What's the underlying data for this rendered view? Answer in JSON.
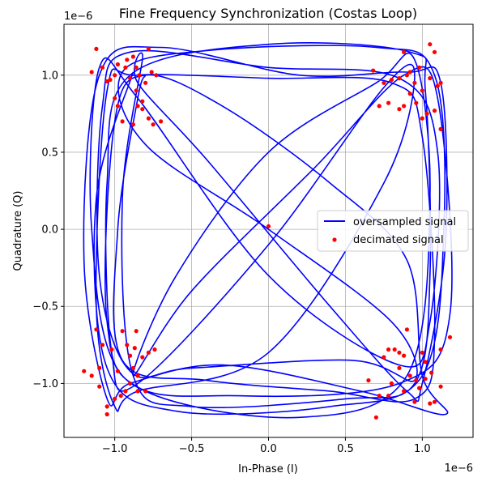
{
  "chart_data": {
    "type": "scatter",
    "title": "Fine Frequency Synchronization (Costas Loop)",
    "xlabel": "In-Phase (I)",
    "ylabel": "Quadrature (Q)",
    "x_offset_label": "1e−6",
    "y_offset_label": "1e−6",
    "xlim": [
      -1.33,
      1.33
    ],
    "ylim": [
      -1.35,
      1.33
    ],
    "xticks": [
      -1.0,
      -0.5,
      0.0,
      0.5,
      1.0
    ],
    "yticks": [
      -1.0,
      -0.5,
      0.0,
      0.5,
      1.0
    ],
    "xtick_labels": [
      "−1.0",
      "−0.5",
      "0.0",
      "0.5",
      "1.0"
    ],
    "ytick_labels": [
      "−1.0",
      "−0.5",
      "0.0",
      "0.5",
      "1.0"
    ],
    "grid": true,
    "legend_position": "right",
    "series": [
      {
        "name": "oversampled signal",
        "kind": "line",
        "color": "#0000ff",
        "points": [
          [
            -0.88,
            1.02
          ],
          [
            -1.12,
            0.2
          ],
          [
            -1.05,
            -0.9
          ],
          [
            -0.6,
            -1.18
          ],
          [
            0.4,
            -1.15
          ],
          [
            1.0,
            -0.95
          ],
          [
            1.14,
            0.0
          ],
          [
            1.08,
            1.0
          ],
          [
            0.7,
            1.18
          ],
          [
            -0.4,
            1.16
          ],
          [
            -0.95,
            1.02
          ],
          [
            -0.8,
            0.55
          ],
          [
            0.0,
            0.0
          ],
          [
            0.8,
            -0.6
          ],
          [
            0.95,
            -0.98
          ],
          [
            0.55,
            -0.85
          ],
          [
            -0.5,
            -0.9
          ],
          [
            -0.9,
            -0.92
          ],
          [
            -1.1,
            -0.3
          ],
          [
            -1.08,
            0.8
          ],
          [
            -0.9,
            1.15
          ],
          [
            0.0,
            1.05
          ],
          [
            0.85,
            0.98
          ],
          [
            1.1,
            0.5
          ],
          [
            1.05,
            -0.6
          ],
          [
            0.85,
            -0.88
          ],
          [
            0.0,
            -0.3
          ],
          [
            -0.85,
            0.85
          ],
          [
            -1.1,
            1.05
          ],
          [
            -1.15,
            0.0
          ],
          [
            -0.95,
            -0.95
          ],
          [
            -0.2,
            -1.08
          ],
          [
            0.85,
            -1.0
          ],
          [
            1.18,
            -0.55
          ],
          [
            1.1,
            0.85
          ],
          [
            0.88,
            1.0
          ],
          [
            0.3,
            0.4
          ],
          [
            -0.5,
            -0.4
          ],
          [
            -0.88,
            -0.95
          ],
          [
            -0.6,
            -0.3
          ],
          [
            0.0,
            0.5
          ],
          [
            0.7,
            0.95
          ],
          [
            0.95,
            1.1
          ],
          [
            1.05,
            0.2
          ],
          [
            0.9,
            -0.95
          ],
          [
            0.2,
            -1.22
          ],
          [
            -0.8,
            -1.05
          ],
          [
            -1.05,
            -0.6
          ],
          [
            -1.0,
            0.7
          ],
          [
            -0.8,
            1.0
          ],
          [
            -0.3,
            0.8
          ],
          [
            0.4,
            0.3
          ],
          [
            0.9,
            -0.2
          ],
          [
            1.0,
            -0.95
          ],
          [
            1.15,
            -1.2
          ],
          [
            0.6,
            -1.05
          ],
          [
            -0.3,
            -0.88
          ],
          [
            -0.9,
            -1.0
          ],
          [
            -1.05,
            -1.1
          ],
          [
            -1.2,
            -0.2
          ],
          [
            -1.1,
            1.0
          ],
          [
            -0.7,
            1.18
          ],
          [
            0.2,
            1.0
          ],
          [
            0.9,
            1.02
          ],
          [
            1.12,
            0.95
          ],
          [
            1.15,
            -0.1
          ],
          [
            1.0,
            -1.0
          ],
          [
            0.9,
            -1.05
          ],
          [
            0.4,
            -0.5
          ],
          [
            -0.4,
            0.45
          ],
          [
            -0.85,
            0.95
          ],
          [
            -0.82,
            1.1
          ],
          [
            -0.95,
            0.2
          ],
          [
            -0.88,
            -0.95
          ],
          [
            -0.5,
            -1.15
          ],
          [
            0.5,
            -1.1
          ],
          [
            0.95,
            -1.0
          ],
          [
            1.05,
            -0.3
          ],
          [
            1.02,
            0.9
          ],
          [
            0.92,
            1.15
          ],
          [
            0.0,
            1.2
          ],
          [
            -0.9,
            1.0
          ],
          [
            -1.05,
            0.3
          ],
          [
            -1.02,
            -0.8
          ],
          [
            -0.85,
            -1.0
          ],
          [
            0.0,
            -0.1
          ],
          [
            0.75,
            0.92
          ],
          [
            0.95,
            1.0
          ],
          [
            0.75,
            0.3
          ],
          [
            0.0,
            -0.8
          ],
          [
            -0.85,
            -1.05
          ],
          [
            -1.0,
            -1.15
          ],
          [
            -1.12,
            -0.5
          ],
          [
            -1.05,
            0.9
          ],
          [
            -0.85,
            1.0
          ],
          [
            0.0,
            0.98
          ],
          [
            0.8,
            0.95
          ],
          [
            1.0,
            0.6
          ],
          [
            1.08,
            -0.7
          ],
          [
            0.95,
            -1.1
          ],
          [
            0.4,
            -1.05
          ],
          [
            -0.4,
            -0.98
          ],
          [
            -0.95,
            -0.85
          ],
          [
            -0.98,
            0.0
          ],
          [
            -0.85,
            0.85
          ],
          [
            -0.8,
            1.0
          ]
        ]
      },
      {
        "name": "decimated signal",
        "kind": "scatter",
        "color": "#ff0000",
        "points": [
          [
            -1.12,
            1.17
          ],
          [
            -1.08,
            1.05
          ],
          [
            -1.03,
            0.97
          ],
          [
            -1.15,
            1.02
          ],
          [
            -0.98,
            1.07
          ],
          [
            -0.92,
            1.1
          ],
          [
            -0.88,
            1.12
          ],
          [
            -0.84,
            1.0
          ],
          [
            -0.8,
            0.95
          ],
          [
            -0.76,
            1.02
          ],
          [
            -0.73,
            1.0
          ],
          [
            -0.78,
            1.17
          ],
          [
            -0.95,
            0.7
          ],
          [
            -0.88,
            0.68
          ],
          [
            -0.85,
            0.8
          ],
          [
            -0.82,
            0.78
          ],
          [
            -0.78,
            0.72
          ],
          [
            -0.75,
            0.68
          ],
          [
            -0.7,
            0.7
          ],
          [
            -1.0,
            0.85
          ],
          [
            -0.98,
            0.8
          ],
          [
            -1.05,
            0.96
          ],
          [
            -0.9,
            0.98
          ],
          [
            -0.86,
            0.9
          ],
          [
            -0.93,
            1.05
          ],
          [
            -1.0,
            1.0
          ],
          [
            -0.86,
            1.05
          ],
          [
            -0.82,
            0.83
          ],
          [
            0.88,
            1.15
          ],
          [
            0.92,
            1.02
          ],
          [
            0.95,
            0.95
          ],
          [
            1.0,
            0.9
          ],
          [
            1.05,
            0.98
          ],
          [
            1.08,
            1.15
          ],
          [
            1.05,
            1.2
          ],
          [
            0.85,
            0.98
          ],
          [
            0.8,
            0.97
          ],
          [
            0.75,
            0.95
          ],
          [
            0.68,
            1.03
          ],
          [
            0.72,
            0.8
          ],
          [
            0.85,
            0.78
          ],
          [
            0.88,
            0.8
          ],
          [
            0.92,
            0.88
          ],
          [
            0.96,
            0.82
          ],
          [
            1.03,
            0.75
          ],
          [
            1.08,
            0.77
          ],
          [
            1.12,
            0.95
          ],
          [
            1.12,
            0.65
          ],
          [
            1.0,
            0.72
          ],
          [
            0.78,
            0.82
          ],
          [
            0.9,
            1.0
          ],
          [
            0.98,
            1.05
          ],
          [
            1.1,
            0.93
          ],
          [
            -1.2,
            -0.92
          ],
          [
            -1.15,
            -0.95
          ],
          [
            -1.1,
            -0.9
          ],
          [
            -1.08,
            -0.75
          ],
          [
            -1.02,
            -0.78
          ],
          [
            -0.95,
            -0.66
          ],
          [
            -0.92,
            -0.75
          ],
          [
            -0.87,
            -0.77
          ],
          [
            -0.82,
            -0.83
          ],
          [
            -0.78,
            -0.8
          ],
          [
            -0.74,
            -0.78
          ],
          [
            -1.05,
            -1.2
          ],
          [
            -1.0,
            -1.1
          ],
          [
            -0.96,
            -1.08
          ],
          [
            -0.9,
            -1.0
          ],
          [
            -0.85,
            -1.05
          ],
          [
            -0.8,
            -1.05
          ],
          [
            -0.85,
            -0.95
          ],
          [
            -0.88,
            -0.9
          ],
          [
            -1.1,
            -1.02
          ],
          [
            -1.05,
            -1.15
          ],
          [
            -0.93,
            -1.05
          ],
          [
            -0.9,
            -0.82
          ],
          [
            -0.98,
            -0.92
          ],
          [
            -0.86,
            -0.66
          ],
          [
            -1.12,
            -0.65
          ],
          [
            0.0,
            0.02
          ],
          [
            0.65,
            -0.98
          ],
          [
            0.7,
            -1.22
          ],
          [
            0.72,
            -1.08
          ],
          [
            0.75,
            -0.83
          ],
          [
            0.78,
            -0.78
          ],
          [
            0.82,
            -0.78
          ],
          [
            0.85,
            -0.8
          ],
          [
            0.88,
            -0.82
          ],
          [
            0.92,
            -0.95
          ],
          [
            0.96,
            -0.98
          ],
          [
            1.0,
            -0.8
          ],
          [
            1.02,
            -0.97
          ],
          [
            1.05,
            -1.13
          ],
          [
            1.08,
            -1.12
          ],
          [
            1.02,
            -0.86
          ],
          [
            1.06,
            -0.93
          ],
          [
            1.12,
            -0.78
          ],
          [
            1.18,
            -0.7
          ],
          [
            1.12,
            -1.02
          ],
          [
            0.95,
            -1.12
          ],
          [
            0.88,
            -1.05
          ],
          [
            0.85,
            -0.9
          ],
          [
            0.8,
            -1.0
          ],
          [
            0.9,
            -0.65
          ],
          [
            0.78,
            -1.08
          ],
          [
            0.98,
            -1.03
          ]
        ]
      }
    ]
  }
}
